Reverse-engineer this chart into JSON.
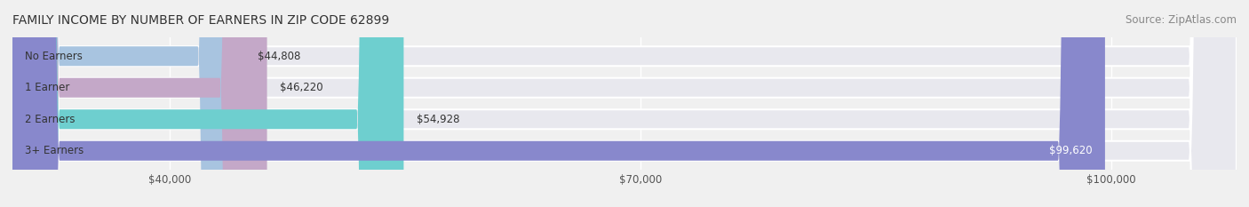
{
  "title": "FAMILY INCOME BY NUMBER OF EARNERS IN ZIP CODE 62899",
  "source": "Source: ZipAtlas.com",
  "categories": [
    "No Earners",
    "1 Earner",
    "2 Earners",
    "3+ Earners"
  ],
  "values": [
    44808,
    46220,
    54928,
    99620
  ],
  "bar_colors": [
    "#a8c4e0",
    "#c4a8c8",
    "#6ecfcf",
    "#8888cc"
  ],
  "label_colors": [
    "#333333",
    "#333333",
    "#333333",
    "#ffffff"
  ],
  "value_labels": [
    "$44,808",
    "$46,220",
    "$54,928",
    "$99,620"
  ],
  "x_min": 30000,
  "x_max": 108000,
  "xtick_values": [
    40000,
    70000,
    100000
  ],
  "xtick_labels": [
    "$40,000",
    "$70,000",
    "$100,000"
  ],
  "background_color": "#f0f0f0",
  "bar_background_color": "#e8e8ee",
  "title_fontsize": 10,
  "source_fontsize": 8.5,
  "bar_height": 0.62,
  "bar_label_fontsize": 8.5,
  "value_label_fontsize": 8.5,
  "tick_label_fontsize": 8.5
}
